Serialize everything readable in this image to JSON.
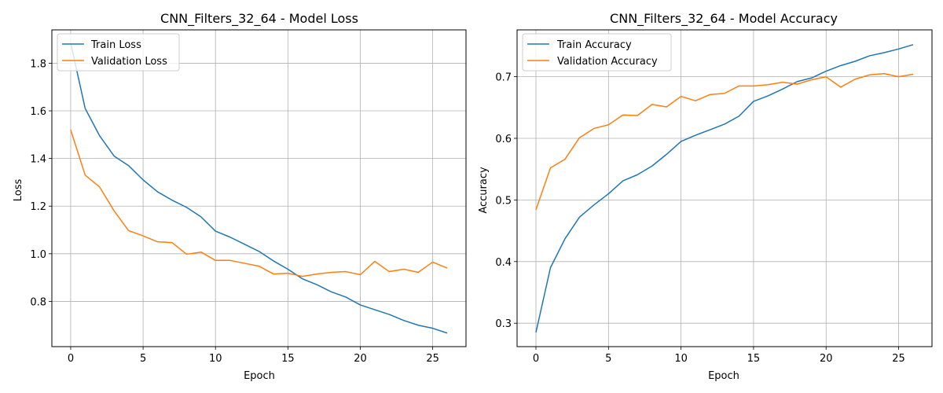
{
  "chart_data": [
    {
      "type": "line",
      "title": "CNN_Filters_32_64 - Model Loss",
      "xlabel": "Epoch",
      "ylabel": "Loss",
      "xlim": [
        -1.3,
        27.3
      ],
      "ylim": [
        0.61,
        1.94
      ],
      "xticks": [
        0,
        5,
        10,
        15,
        20,
        25
      ],
      "yticks": [
        0.8,
        1.0,
        1.2,
        1.4,
        1.6,
        1.8
      ],
      "ytick_labels": [
        "0.8",
        "1.0",
        "1.2",
        "1.4",
        "1.6",
        "1.8"
      ],
      "grid": true,
      "legend_position": "top-left",
      "x": [
        0,
        1,
        2,
        3,
        4,
        5,
        6,
        7,
        8,
        9,
        10,
        11,
        12,
        13,
        14,
        15,
        16,
        17,
        18,
        19,
        20,
        21,
        22,
        23,
        24,
        25,
        26
      ],
      "series": [
        {
          "name": "Train Loss",
          "color": "#1f77b4",
          "values": [
            1.885,
            1.61,
            1.495,
            1.41,
            1.37,
            1.31,
            1.26,
            1.225,
            1.195,
            1.155,
            1.095,
            1.07,
            1.04,
            1.01,
            0.97,
            0.935,
            0.895,
            0.87,
            0.84,
            0.818,
            0.785,
            0.765,
            0.745,
            0.72,
            0.7,
            0.687,
            0.667
          ]
        },
        {
          "name": "Validation Loss",
          "color": "#ff7f0e",
          "values": [
            1.52,
            1.33,
            1.28,
            1.18,
            1.097,
            1.075,
            1.05,
            1.047,
            0.998,
            1.007,
            0.972,
            0.972,
            0.96,
            0.948,
            0.915,
            0.918,
            0.905,
            0.915,
            0.922,
            0.925,
            0.912,
            0.968,
            0.925,
            0.935,
            0.922,
            0.965,
            0.94
          ]
        }
      ]
    },
    {
      "type": "line",
      "title": "CNN_Filters_32_64 - Model Accuracy",
      "xlabel": "Epoch",
      "ylabel": "Accuracy",
      "xlim": [
        -1.3,
        27.3
      ],
      "ylim": [
        0.262,
        0.776
      ],
      "xticks": [
        0,
        5,
        10,
        15,
        20,
        25
      ],
      "yticks": [
        0.3,
        0.4,
        0.5,
        0.6,
        0.7
      ],
      "ytick_labels": [
        "0.3",
        "0.4",
        "0.5",
        "0.6",
        "0.7"
      ],
      "grid": true,
      "legend_position": "top-left",
      "x": [
        0,
        1,
        2,
        3,
        4,
        5,
        6,
        7,
        8,
        9,
        10,
        11,
        12,
        13,
        14,
        15,
        16,
        17,
        18,
        19,
        20,
        21,
        22,
        23,
        24,
        25,
        26
      ],
      "series": [
        {
          "name": "Train Accuracy",
          "color": "#1f77b4",
          "values": [
            0.285,
            0.39,
            0.437,
            0.472,
            0.492,
            0.51,
            0.531,
            0.541,
            0.555,
            0.574,
            0.595,
            0.605,
            0.614,
            0.623,
            0.636,
            0.66,
            0.669,
            0.68,
            0.692,
            0.698,
            0.709,
            0.718,
            0.725,
            0.734,
            0.739,
            0.745,
            0.752
          ]
        },
        {
          "name": "Validation Accuracy",
          "color": "#ff7f0e",
          "values": [
            0.484,
            0.552,
            0.566,
            0.601,
            0.616,
            0.622,
            0.638,
            0.637,
            0.655,
            0.651,
            0.668,
            0.661,
            0.671,
            0.673,
            0.685,
            0.685,
            0.687,
            0.691,
            0.688,
            0.695,
            0.7,
            0.683,
            0.696,
            0.703,
            0.705,
            0.7,
            0.704
          ]
        }
      ]
    }
  ]
}
